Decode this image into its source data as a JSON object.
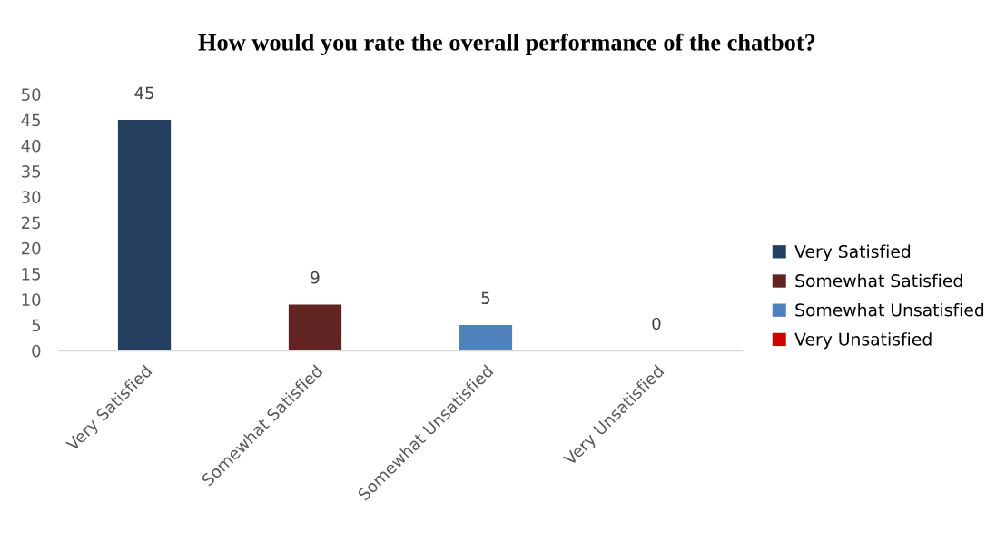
{
  "chart_data": {
    "type": "bar",
    "title": "How would you rate the overall performance of the chatbot?",
    "categories": [
      "Very Satisfied",
      "Somewhat Satisfied",
      "Somewhat Unsatisfied",
      "Very Unsatisfied"
    ],
    "series": [
      {
        "name": "Very Satisfied",
        "color": "#243f60",
        "values": [
          45,
          null,
          null,
          null
        ]
      },
      {
        "name": "Somewhat Satisfied",
        "color": "#632523",
        "values": [
          null,
          9,
          null,
          null
        ]
      },
      {
        "name": "Somewhat Unsatisfied",
        "color": "#4f81bd",
        "values": [
          null,
          null,
          5,
          null
        ]
      },
      {
        "name": "Very Unsatisfied",
        "color": "#d00000",
        "values": [
          null,
          null,
          null,
          0
        ]
      }
    ],
    "ylim": [
      0,
      50
    ],
    "yticks": [
      0,
      5,
      10,
      15,
      20,
      25,
      30,
      35,
      40,
      45,
      50
    ],
    "grid": false,
    "legend": "right",
    "data_labels": true
  }
}
